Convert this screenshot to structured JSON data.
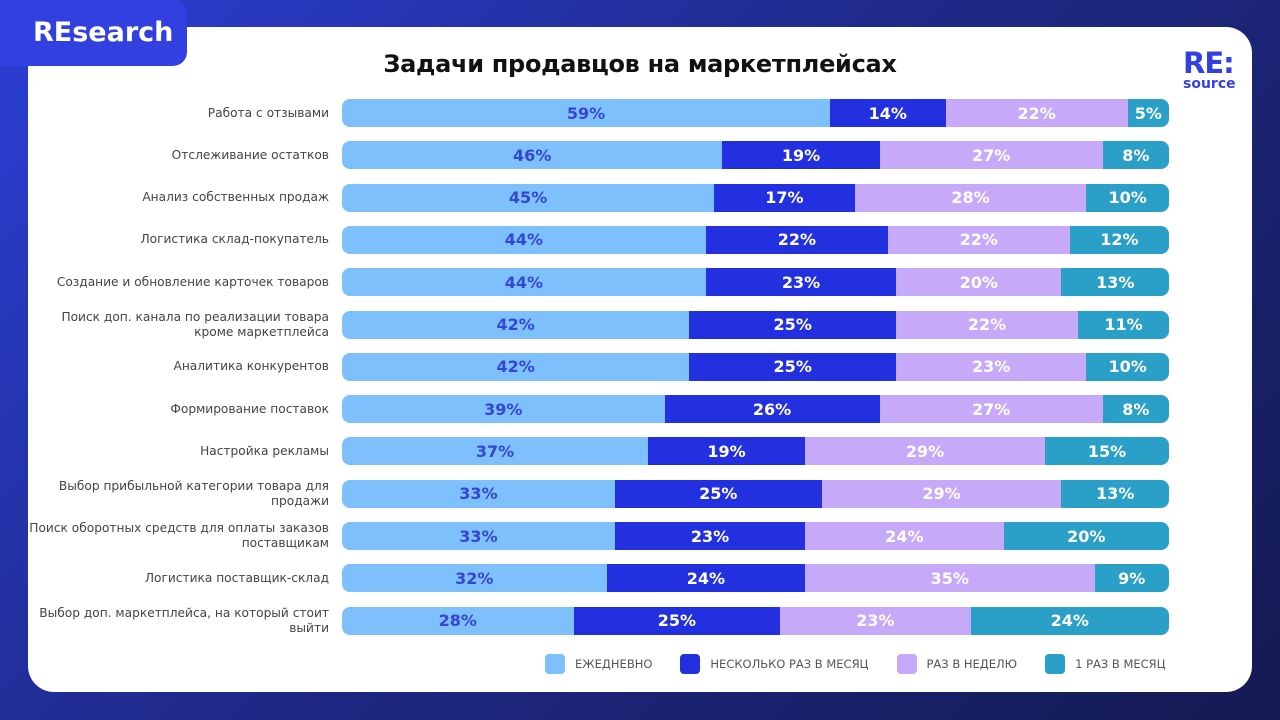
{
  "badge": "REsearch",
  "logo": {
    "line1": "RE:",
    "line2": "source"
  },
  "chart_data": {
    "type": "bar",
    "orientation": "horizontal",
    "stacked": true,
    "title": "Задачи продавцов на маркетплейсах",
    "unit": "%",
    "legend_position": "bottom-right",
    "categories": [
      "Работа с отзывами",
      "Отслеживание остатков",
      "Анализ собственных продаж",
      "Логистика склад-покупатель",
      "Создание и обновление карточек товаров",
      "Поиск доп. канала по реализации товара кроме маркетплейса",
      "Аналитика конкурентов",
      "Формирование поставок",
      "Настройка рекламы",
      "Выбор прибыльной категории товара для продажи",
      "Поиск оборотных средств для оплаты заказов поставщикам",
      "Логистика поставщик-склад",
      "Выбор доп. маркетплейса, на который стоит выйти"
    ],
    "series": [
      {
        "name": "ЕЖЕДНЕВНО",
        "color": "#7ec0fb",
        "text_color": "#3446d4",
        "values": [
          59,
          46,
          45,
          44,
          44,
          42,
          42,
          39,
          37,
          33,
          33,
          32,
          28
        ]
      },
      {
        "name": "НЕСКОЛЬКО РАЗ В МЕСЯЦ",
        "color": "#2330e0",
        "text_color": "#ffffff",
        "values": [
          14,
          19,
          17,
          22,
          23,
          25,
          25,
          26,
          19,
          25,
          23,
          24,
          25
        ]
      },
      {
        "name": "РАЗ В НЕДЕЛЮ",
        "color": "#c7a9f9",
        "text_color": "#ffffff",
        "values": [
          22,
          27,
          28,
          22,
          20,
          22,
          23,
          27,
          29,
          29,
          24,
          35,
          23
        ]
      },
      {
        "name": "1 РАЗ В МЕСЯЦ",
        "color": "#2aa0c8",
        "text_color": "#ffffff",
        "values": [
          5,
          8,
          10,
          12,
          13,
          11,
          10,
          8,
          15,
          13,
          20,
          9,
          24
        ]
      }
    ]
  }
}
